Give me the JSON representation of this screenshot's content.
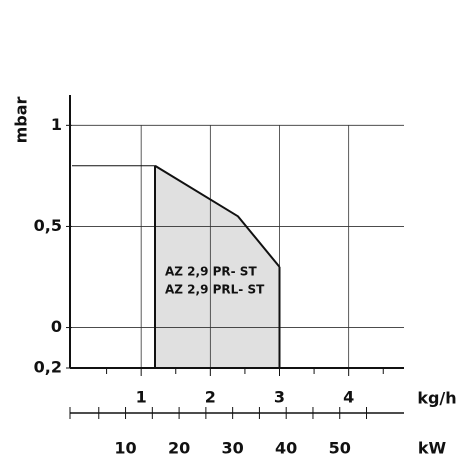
{
  "chart_data": {
    "type": "area",
    "y_label": "mbar",
    "x_label": "kg/h",
    "x2_label": "kW",
    "annotations": [
      "AZ 2,9 PR- ST",
      "AZ 2,9 PRL- ST"
    ],
    "x": [
      1.2,
      2.4,
      3
    ],
    "values": [
      0.8,
      0.55,
      0.3
    ],
    "base": -0.2,
    "color": "#e0e0e0",
    "line_color": "#111111",
    "xlim": [
      0,
      4.8
    ],
    "xticks": [
      1,
      2,
      3,
      4
    ],
    "xminor": [
      0.5,
      1.5,
      2.5,
      3.5,
      4.5
    ],
    "ylim": [
      -0.2,
      1.15
    ],
    "yticks": [
      1,
      {
        "value": 0.5,
        "label": "0,5"
      },
      0,
      {
        "value": -0.2,
        "label": "0,2"
      }
    ],
    "x2lim": [
      0,
      62
    ],
    "x2ticks": [
      10,
      20,
      30,
      40,
      50
    ],
    "x2minor": [
      5,
      15,
      25,
      35,
      45,
      55
    ],
    "grid": true
  }
}
